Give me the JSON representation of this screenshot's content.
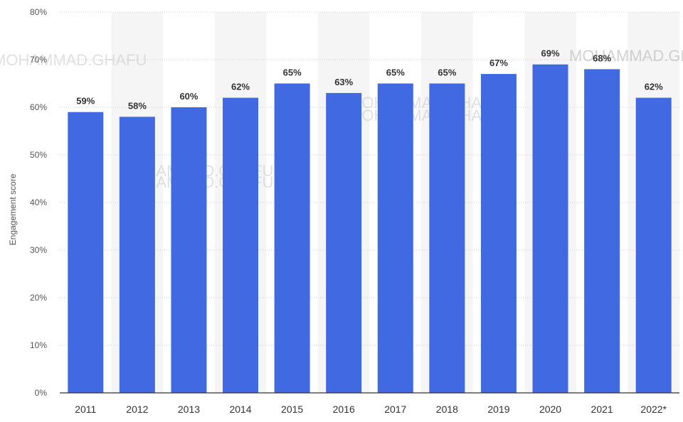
{
  "chart_data": {
    "type": "bar",
    "categories": [
      "2011",
      "2012",
      "2013",
      "2014",
      "2015",
      "2016",
      "2017",
      "2018",
      "2019",
      "2020",
      "2021",
      "2022*"
    ],
    "values": [
      59,
      58,
      60,
      62,
      65,
      63,
      65,
      65,
      67,
      69,
      68,
      62
    ],
    "data_labels": [
      "59%",
      "58%",
      "60%",
      "62%",
      "65%",
      "63%",
      "65%",
      "65%",
      "67%",
      "69%",
      "68%",
      "62%"
    ],
    "ylabel": "Engagement score",
    "xlabel": "",
    "ylim": [
      0,
      80
    ],
    "yticks": [
      0,
      10,
      20,
      30,
      40,
      50,
      60,
      70,
      80
    ],
    "ytick_labels": [
      "0%",
      "10%",
      "20%",
      "30%",
      "40%",
      "50%",
      "60%",
      "70%",
      "80%"
    ],
    "grid": true,
    "bar_color": "#4169e1",
    "band_color": "#f5f5f5",
    "watermarks": [
      "MOHAMMAD.GHAFU",
      "MOHAMMAD.GHAFU",
      "MOHAMMAD.GHAFU",
      "MOHAMMAD.GHAFU",
      "MOHAMMAD.GHAFU",
      "MOHAMMAD.GHAFU",
      "MOHAMMAD.GHAFU"
    ]
  }
}
